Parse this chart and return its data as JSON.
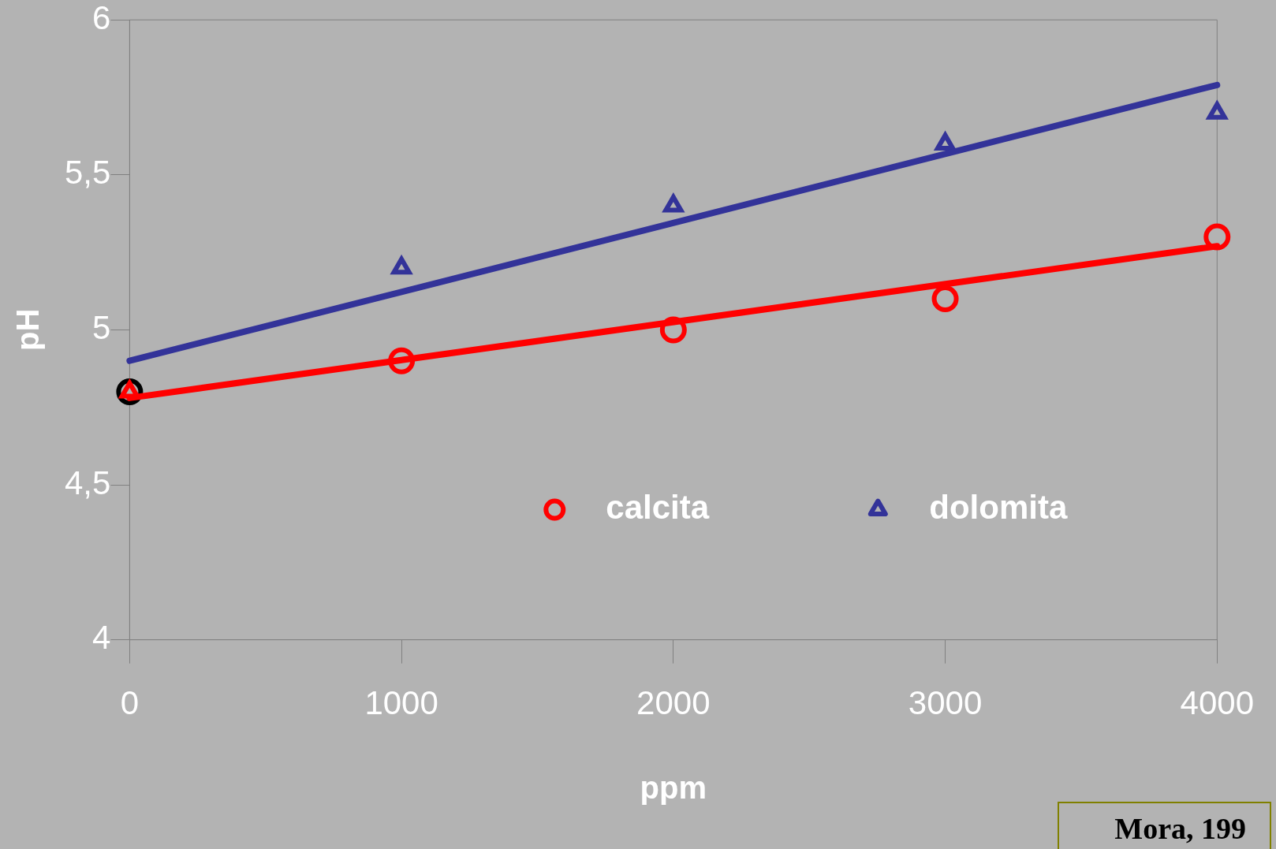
{
  "chart_data": {
    "type": "scatter",
    "xlabel": "ppm",
    "ylabel": "pH",
    "xlim": [
      0,
      4000
    ],
    "xticks": [
      0,
      1000,
      2000,
      3000,
      4000
    ],
    "ylim": [
      4,
      6
    ],
    "yticks": [
      4,
      {
        "value": 4.5,
        "label": "4,5"
      },
      5,
      {
        "value": 5.5,
        "label": "5,5"
      },
      6
    ],
    "series": [
      {
        "name": "calcita",
        "type": "scatter",
        "marker": "circle",
        "color": "#ff0000",
        "colors": [
          "#000000",
          "#ff0000",
          "#ff0000",
          "#ff0000",
          "#ff0000"
        ],
        "x": [
          0,
          1000,
          2000,
          3000,
          4000
        ],
        "values": [
          4.8,
          4.9,
          5.0,
          5.1,
          5.3
        ]
      },
      {
        "name": "dolomita",
        "type": "scatter",
        "marker": "triangle",
        "color": "#333399",
        "colors": [
          "#ff0000",
          "#333399",
          "#333399",
          "#333399",
          "#333399"
        ],
        "x": [
          0,
          1000,
          2000,
          3000,
          4000
        ],
        "values": [
          4.8,
          5.2,
          5.4,
          5.6,
          5.7
        ]
      },
      {
        "type": "line",
        "marker": "none",
        "color": "#ff0000",
        "x": [
          0,
          4000
        ],
        "values": [
          4.78,
          5.27
        ]
      },
      {
        "type": "line",
        "marker": "none",
        "color": "#333399",
        "x": [
          0,
          4000
        ],
        "values": [
          4.9,
          5.79
        ]
      }
    ],
    "legend": "bottom right",
    "grid": false,
    "annotations": [
      "Mora, 199"
    ]
  }
}
